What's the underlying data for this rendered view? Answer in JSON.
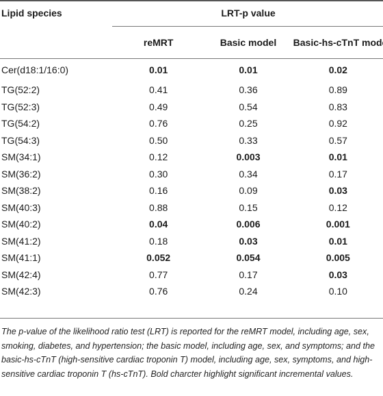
{
  "table": {
    "header": {
      "species": "Lipid species",
      "group": "LRT-p value",
      "cols": [
        "reMRT",
        "Basic model",
        "Basic-hs-cTnT model"
      ]
    },
    "rows": [
      {
        "name": "Cer(d18:1/16:0)",
        "v": [
          "0.01",
          "0.01",
          "0.02"
        ],
        "bold": [
          true,
          true,
          true
        ]
      },
      {
        "name": "TG(52:2)",
        "v": [
          "0.41",
          "0.36",
          "0.89"
        ],
        "bold": [
          false,
          false,
          false
        ]
      },
      {
        "name": "TG(52:3)",
        "v": [
          "0.49",
          "0.54",
          "0.83"
        ],
        "bold": [
          false,
          false,
          false
        ]
      },
      {
        "name": "TG(54:2)",
        "v": [
          "0.76",
          "0.25",
          "0.92"
        ],
        "bold": [
          false,
          false,
          false
        ]
      },
      {
        "name": "TG(54:3)",
        "v": [
          "0.50",
          "0.33",
          "0.57"
        ],
        "bold": [
          false,
          false,
          false
        ]
      },
      {
        "name": "SM(34:1)",
        "v": [
          "0.12",
          "0.003",
          "0.01"
        ],
        "bold": [
          false,
          true,
          true
        ]
      },
      {
        "name": "SM(36:2)",
        "v": [
          "0.30",
          "0.34",
          "0.17"
        ],
        "bold": [
          false,
          false,
          false
        ]
      },
      {
        "name": "SM(38:2)",
        "v": [
          "0.16",
          "0.09",
          "0.03"
        ],
        "bold": [
          false,
          false,
          true
        ]
      },
      {
        "name": "SM(40:3)",
        "v": [
          "0.88",
          "0.15",
          "0.12"
        ],
        "bold": [
          false,
          false,
          false
        ]
      },
      {
        "name": "SM(40:2)",
        "v": [
          "0.04",
          "0.006",
          "0.001"
        ],
        "bold": [
          true,
          true,
          true
        ]
      },
      {
        "name": "SM(41:2)",
        "v": [
          "0.18",
          "0.03",
          "0.01"
        ],
        "bold": [
          false,
          true,
          true
        ]
      },
      {
        "name": "SM(41:1)",
        "v": [
          "0.052",
          "0.054",
          "0.005"
        ],
        "bold": [
          true,
          true,
          true
        ]
      },
      {
        "name": "SM(42:4)",
        "v": [
          "0.77",
          "0.17",
          "0.03"
        ],
        "bold": [
          false,
          false,
          true
        ]
      },
      {
        "name": "SM(42:3)",
        "v": [
          "0.76",
          "0.24",
          "0.10"
        ],
        "bold": [
          false,
          false,
          false
        ]
      }
    ]
  },
  "footnote": "The p-value of the likelihood ratio test (LRT) is reported for the reMRT model, including age, sex, smoking, diabetes, and hypertension; the basic model, including age, sex, and symptoms; and the basic-hs-cTnT (high-sensitive cardiac troponin T) model, including age, sex, symptoms, and high-sensitive cardiac troponin T (hs-cTnT). Bold charcter highlight significant incremental values."
}
